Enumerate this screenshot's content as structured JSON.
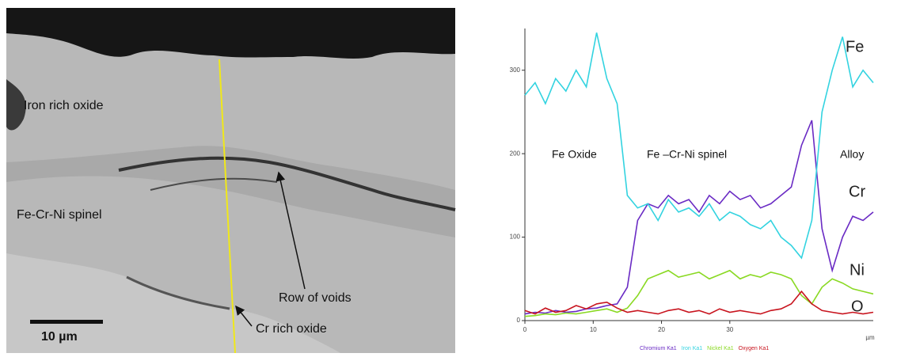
{
  "micrograph": {
    "labels": [
      "Iron rich oxide",
      "Fe-Cr-Ni spinel",
      "Row of voids",
      "Cr rich oxide"
    ],
    "scale_bar": "10 µm"
  },
  "chart_data": {
    "type": "line",
    "x": [
      0,
      1.5,
      3,
      4.5,
      6,
      7.5,
      9,
      10.5,
      12,
      13.5,
      15,
      16.5,
      18,
      19.5,
      21,
      22.5,
      24,
      25.5,
      27,
      28.5,
      30,
      31.5,
      33,
      34.5,
      36,
      37.5,
      39,
      40.5,
      42,
      43.5,
      45,
      46.5,
      48,
      49.5,
      51
    ],
    "series": [
      {
        "name": "Chromium Ka1",
        "color": "#6a2bc4",
        "values": [
          8,
          10,
          9,
          12,
          10,
          11,
          14,
          15,
          18,
          20,
          40,
          120,
          140,
          135,
          150,
          140,
          145,
          130,
          150,
          140,
          155,
          145,
          150,
          135,
          140,
          150,
          160,
          210,
          240,
          110,
          60,
          100,
          125,
          120,
          130
        ]
      },
      {
        "name": "Iron Ka1",
        "color": "#33d3e0",
        "values": [
          270,
          285,
          260,
          290,
          275,
          300,
          280,
          345,
          290,
          260,
          150,
          135,
          140,
          120,
          145,
          130,
          135,
          125,
          140,
          120,
          130,
          125,
          115,
          110,
          120,
          100,
          90,
          75,
          120,
          250,
          300,
          340,
          280,
          300,
          285
        ]
      },
      {
        "name": "Nickel Ka1",
        "color": "#8ad923",
        "values": [
          5,
          6,
          8,
          7,
          9,
          8,
          10,
          12,
          14,
          10,
          15,
          30,
          50,
          55,
          60,
          52,
          55,
          58,
          50,
          55,
          60,
          50,
          55,
          52,
          58,
          55,
          50,
          30,
          20,
          40,
          50,
          45,
          38,
          35,
          32
        ]
      },
      {
        "name": "Oxygen Ka1",
        "color": "#c8141e",
        "values": [
          12,
          8,
          15,
          10,
          12,
          18,
          14,
          20,
          22,
          15,
          10,
          12,
          10,
          8,
          12,
          14,
          10,
          12,
          8,
          14,
          10,
          12,
          10,
          8,
          12,
          14,
          20,
          35,
          20,
          12,
          10,
          8,
          10,
          8,
          10
        ]
      }
    ],
    "xlim": [
      0,
      51
    ],
    "ylim": [
      0,
      350
    ],
    "xticks": [
      0,
      10,
      20,
      30
    ],
    "yticks": [
      0,
      100,
      200,
      300
    ],
    "x_label": "µm",
    "annotations": [
      "Fe Oxide",
      "Fe –Cr-Ni spinel",
      "Alloy",
      "Fe",
      "Cr",
      "Ni",
      "O"
    ]
  }
}
